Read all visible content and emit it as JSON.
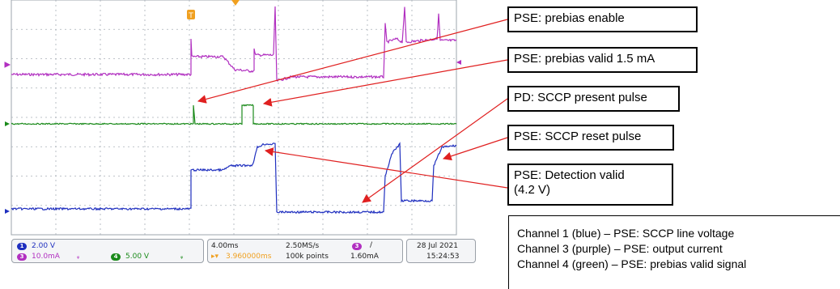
{
  "callouts": {
    "prebias_enable": "PSE: prebias enable",
    "prebias_valid": "PSE: prebias valid 1.5 mA",
    "sccp_present": "PD: SCCP present pulse",
    "sccp_reset": "PSE: SCCP reset pulse",
    "detection_valid_line1": "PSE: Detection valid",
    "detection_valid_line2": "(4.2 V)"
  },
  "legend": {
    "ch1": "Channel 1 (blue) – PSE: SCCP line voltage",
    "ch3": "Channel 3 (purple) – PSE: output current",
    "ch4": "Channel 4 (green) – PSE: prebias valid signal"
  },
  "channels": {
    "ch1": {
      "badge": "1",
      "scale": "2.00 V",
      "color": "#1f2fbf"
    },
    "ch3": {
      "badge": "3",
      "scale": "10.0mA",
      "color": "#b12fc0"
    },
    "ch4": {
      "badge": "4",
      "scale": "5.00 V",
      "color": "#1a8a1a"
    }
  },
  "timebase": {
    "scale": "4.00ms",
    "delay": "3.960000ms",
    "sample_rate": "2.50MS/s",
    "points": "100k points"
  },
  "trigger": {
    "channel_badge": "3",
    "slope_symbol": "/",
    "level": "1.60mA",
    "marker": "T"
  },
  "datetime": {
    "date": "28 Jul  2021",
    "time": "15:24:53"
  },
  "colors": {
    "grid_bg": "#ffffff",
    "grid_line": "#9da4ad",
    "ch1": "#1f2fbf",
    "ch3": "#b12fc0",
    "ch4": "#1a8a1a",
    "trigger": "#f0a020",
    "arrow": "#e02020"
  }
}
